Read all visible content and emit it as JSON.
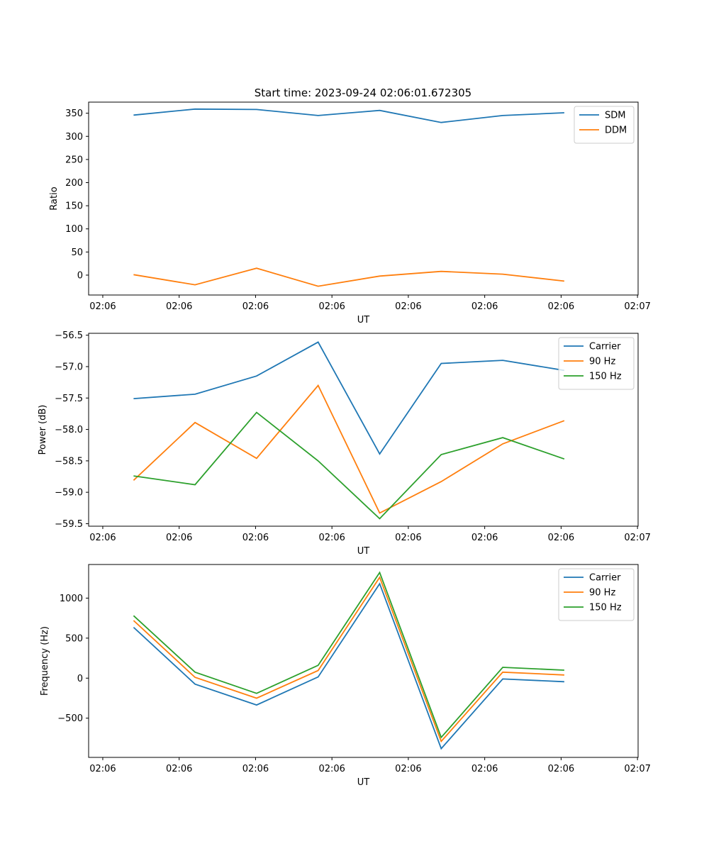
{
  "figure_title": "Start time: 2023-09-24 02:06:01.672305",
  "colors": {
    "series1": "#1f77b4",
    "series2": "#ff7f0e",
    "series3": "#2ca02c"
  },
  "chart_data": [
    {
      "type": "line",
      "title": "Start time: 2023-09-24 02:06:01.672305",
      "xlabel": "UT",
      "ylabel": "Ratio",
      "x_tick_labels": [
        "02:06",
        "02:06",
        "02:06",
        "02:06",
        "02:06",
        "02:06",
        "02:06",
        "02:07"
      ],
      "x": [
        1,
        2,
        3,
        4,
        5,
        6,
        7,
        8
      ],
      "xlim": [
        0.27,
        9.2
      ],
      "ylim": [
        -43,
        374
      ],
      "y_ticks": [
        0,
        50,
        100,
        150,
        200,
        250,
        300,
        350
      ],
      "legend_position": "top-right",
      "series": [
        {
          "name": "SDM",
          "values": [
            346,
            359,
            358,
            345,
            356,
            330,
            345,
            351
          ]
        },
        {
          "name": "DDM",
          "values": [
            1,
            -21,
            15,
            -24,
            -2,
            8,
            2,
            -13
          ]
        }
      ]
    },
    {
      "type": "line",
      "title": "",
      "xlabel": "UT",
      "ylabel": "Power (dB)",
      "x_tick_labels": [
        "02:06",
        "02:06",
        "02:06",
        "02:06",
        "02:06",
        "02:06",
        "02:06",
        "02:07"
      ],
      "x": [
        1,
        2,
        3,
        4,
        5,
        6,
        7,
        8
      ],
      "xlim": [
        0.27,
        9.2
      ],
      "ylim": [
        -59.54,
        -56.47
      ],
      "y_ticks": [
        -59.5,
        -59.0,
        -58.5,
        -58.0,
        -57.5,
        -57.0,
        -56.5
      ],
      "y_tick_labels": [
        "−59.5",
        "−59.0",
        "−58.5",
        "−58.0",
        "−57.5",
        "−57.0",
        "−56.5"
      ],
      "legend_position": "top-right",
      "series": [
        {
          "name": "Carrier",
          "values": [
            -57.51,
            -57.44,
            -57.15,
            -56.61,
            -58.39,
            -56.95,
            -56.9,
            -57.06
          ]
        },
        {
          "name": "90 Hz",
          "values": [
            -58.81,
            -57.89,
            -58.46,
            -57.3,
            -59.33,
            -58.83,
            -58.23,
            -57.86
          ]
        },
        {
          "name": "150 Hz",
          "values": [
            -58.74,
            -58.88,
            -57.73,
            -58.5,
            -59.42,
            -58.4,
            -58.13,
            -58.47
          ]
        }
      ]
    },
    {
      "type": "line",
      "title": "",
      "xlabel": "UT",
      "ylabel": "Frequency (Hz)",
      "x_tick_labels": [
        "02:06",
        "02:06",
        "02:06",
        "02:06",
        "02:06",
        "02:06",
        "02:06",
        "02:07"
      ],
      "x": [
        1,
        2,
        3,
        4,
        5,
        6,
        7,
        8
      ],
      "xlim": [
        0.27,
        9.2
      ],
      "ylim": [
        -990,
        1420
      ],
      "y_ticks": [
        -500,
        0,
        500,
        1000
      ],
      "y_tick_labels": [
        "−500",
        "0",
        "500",
        "1000"
      ],
      "legend_position": "top-right",
      "series": [
        {
          "name": "Carrier",
          "values": [
            635,
            -75,
            -335,
            15,
            1180,
            -880,
            -10,
            -45
          ]
        },
        {
          "name": "90 Hz",
          "values": [
            720,
            10,
            -250,
            95,
            1260,
            -790,
            75,
            40
          ]
        },
        {
          "name": "150 Hz",
          "values": [
            780,
            75,
            -190,
            160,
            1320,
            -740,
            135,
            100
          ]
        }
      ]
    }
  ]
}
